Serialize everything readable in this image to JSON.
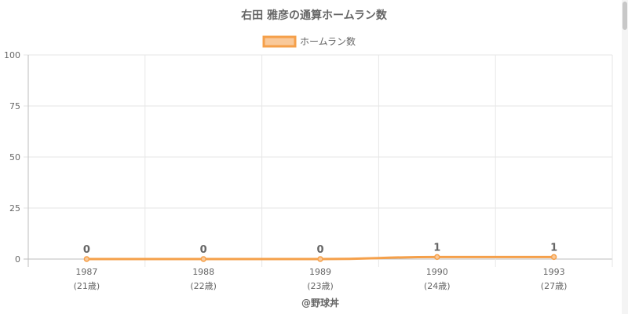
{
  "chart_data": {
    "type": "line",
    "title": "右田 雅彦の通算ホームラン数",
    "categories": [
      "1987",
      "1988",
      "1989",
      "1990",
      "1993"
    ],
    "category_sublabels": [
      "(21歳)",
      "(22歳)",
      "(23歳)",
      "(24歳)",
      "(27歳)"
    ],
    "series": [
      {
        "name": "ホームラン数",
        "values": [
          0,
          0,
          0,
          1,
          1
        ],
        "color": "#f5a04a",
        "fill": "#f9c99a"
      }
    ],
    "ylim": [
      0,
      100
    ],
    "yticks": [
      0,
      25,
      50,
      75,
      100
    ],
    "grid": true,
    "legend": "top",
    "data_labels": true
  },
  "footer": "@野球丼"
}
